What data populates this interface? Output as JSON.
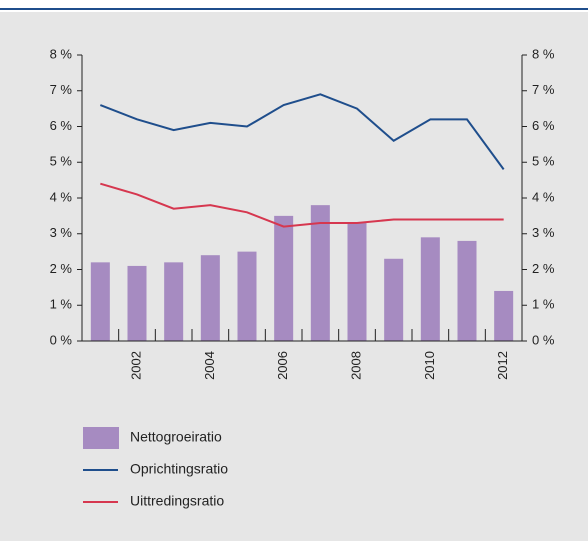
{
  "chart_data": {
    "type": "bar",
    "categories": [
      null,
      "2002",
      null,
      "2004",
      null,
      "2006",
      null,
      "2008",
      null,
      "2010",
      null,
      "2012"
    ],
    "series": [
      {
        "name": "Nettogroeiratio",
        "type": "bar",
        "color": "#a68bc1",
        "values": [
          2.2,
          2.1,
          2.2,
          2.4,
          2.5,
          3.5,
          3.8,
          3.3,
          2.3,
          2.9,
          2.8,
          1.4
        ]
      },
      {
        "name": "Oprichtingsratio",
        "type": "line",
        "color": "#1f4e8c",
        "values": [
          6.6,
          6.2,
          5.9,
          6.1,
          6.0,
          6.6,
          6.9,
          6.5,
          5.6,
          6.2,
          6.2,
          4.8
        ]
      },
      {
        "name": "Uittredingsratio",
        "type": "line",
        "color": "#d6374f",
        "values": [
          4.4,
          4.1,
          3.7,
          3.8,
          3.6,
          3.2,
          3.3,
          3.3,
          3.4,
          3.4,
          3.4,
          3.4
        ]
      }
    ],
    "ylim": [
      0,
      8
    ],
    "yticks": [
      {
        "value": 0,
        "label": "0 %"
      },
      {
        "value": 1,
        "label": "1 %"
      },
      {
        "value": 2,
        "label": "2 %"
      },
      {
        "value": 3,
        "label": "3 %"
      },
      {
        "value": 4,
        "label": "4 %"
      },
      {
        "value": 5,
        "label": "5 %"
      },
      {
        "value": 6,
        "label": "6 %"
      },
      {
        "value": 7,
        "label": "7 %"
      },
      {
        "value": 8,
        "label": "8 %"
      }
    ],
    "y2lim": [
      0,
      8
    ],
    "y2ticks": [
      {
        "value": 0,
        "label": "0 %"
      },
      {
        "value": 1,
        "label": "1 %"
      },
      {
        "value": 2,
        "label": "2 %"
      },
      {
        "value": 3,
        "label": "3 %"
      },
      {
        "value": 4,
        "label": "4 %"
      },
      {
        "value": 5,
        "label": "5 %"
      },
      {
        "value": 6,
        "label": "6 %"
      },
      {
        "value": 7,
        "label": "7 %"
      },
      {
        "value": 8,
        "label": "8 %"
      }
    ]
  }
}
